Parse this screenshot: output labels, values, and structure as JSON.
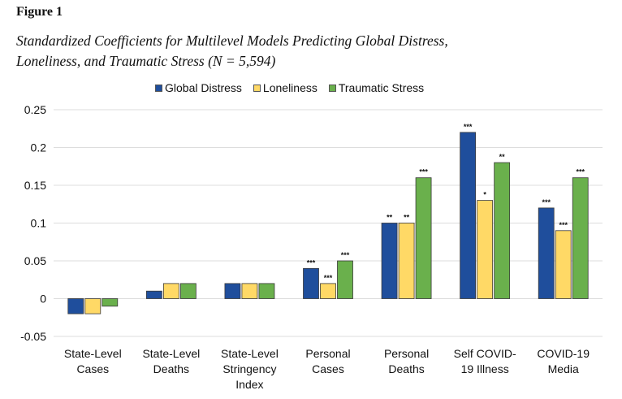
{
  "figure_label": "Figure 1",
  "caption_line1": "Standardized Coefficients for Multilevel Models Predicting Global Distress,",
  "caption_line2": "Loneliness, and Traumatic Stress (N = 5,594)",
  "colors": {
    "global_distress": "#1f4e9c",
    "loneliness": "#ffd966",
    "traumatic_stress": "#6ab04c",
    "gridline": "#dddddd",
    "bar_edge": "#3a3a3a"
  },
  "chart_data": {
    "type": "bar",
    "title": "",
    "xlabel": "",
    "ylabel": "",
    "ylim": [
      -0.05,
      0.25
    ],
    "yticks": [
      -0.05,
      0,
      0.05,
      0.1,
      0.15,
      0.2,
      0.25
    ],
    "ytick_labels": [
      "-0.05",
      "0",
      "0.05",
      "0.1",
      "0.15",
      "0.2",
      "0.25"
    ],
    "grid": true,
    "legend_position": "top-center",
    "categories": [
      [
        "State-Level",
        "Cases"
      ],
      [
        "State-Level",
        "Deaths"
      ],
      [
        "State-Level",
        "Stringency",
        "Index"
      ],
      [
        "Personal",
        "Cases"
      ],
      [
        "Personal",
        "Deaths"
      ],
      [
        "Self COVID-",
        "19 Illness"
      ],
      [
        "COVID-19",
        "Media"
      ]
    ],
    "series": [
      {
        "name": "Global Distress",
        "values": [
          -0.02,
          0.01,
          0.02,
          0.04,
          0.1,
          0.22,
          0.12
        ],
        "significance": [
          "",
          "",
          "",
          "***",
          "**",
          "***",
          "***"
        ]
      },
      {
        "name": "Loneliness",
        "values": [
          -0.02,
          0.02,
          0.02,
          0.02,
          0.1,
          0.13,
          0.09
        ],
        "significance": [
          "",
          "",
          "",
          "***",
          "**",
          "*",
          "***"
        ]
      },
      {
        "name": "Traumatic Stress",
        "values": [
          -0.01,
          0.02,
          0.02,
          0.05,
          0.16,
          0.18,
          0.16
        ],
        "significance": [
          "",
          "",
          "",
          "***",
          "***",
          "**",
          "***"
        ]
      }
    ]
  }
}
